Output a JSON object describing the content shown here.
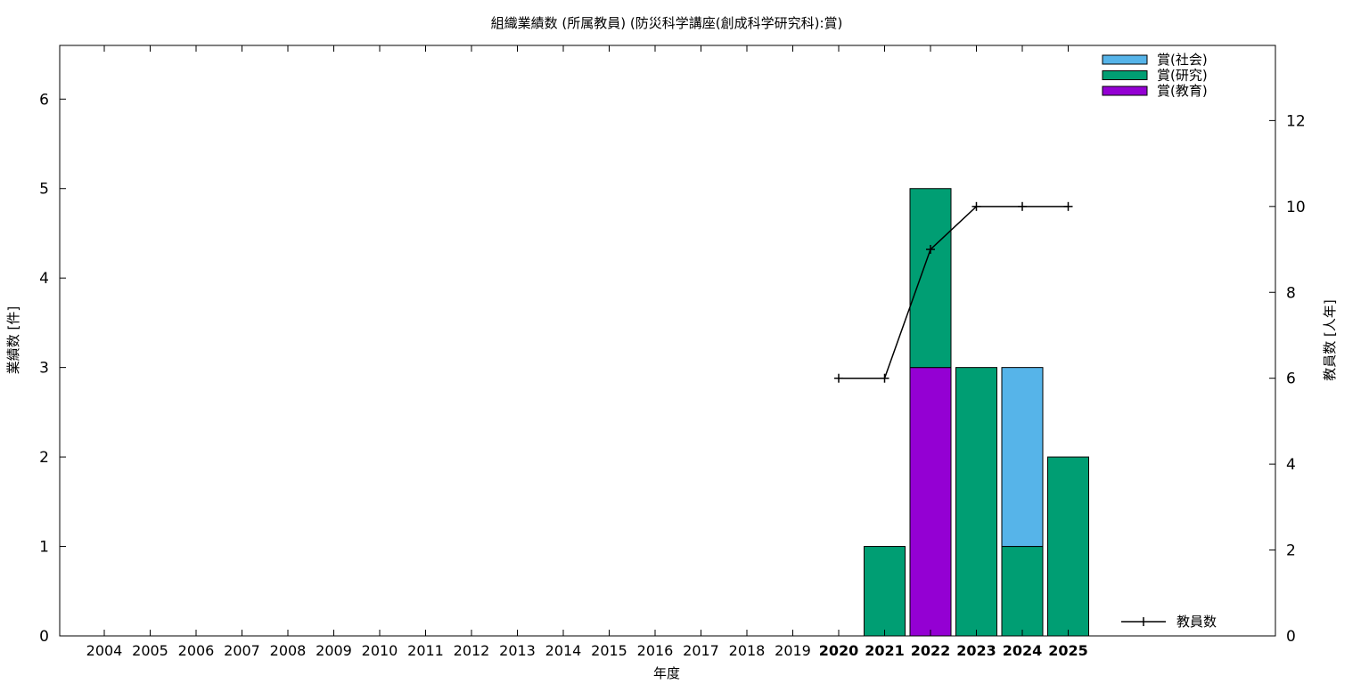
{
  "chart_data": {
    "type": "bar",
    "title": "組織業績数 (所属教員) (防災科学講座(創成科学研究科):賞)",
    "xlabel": "年度",
    "ylabel": "業績数 [件]",
    "y2label": "教員数 [人年]",
    "categories": [
      "2004",
      "2005",
      "2006",
      "2007",
      "2008",
      "2009",
      "2010",
      "2011",
      "2012",
      "2013",
      "2014",
      "2015",
      "2016",
      "2017",
      "2018",
      "2019",
      "2020",
      "2021",
      "2022",
      "2023",
      "2024",
      "2025"
    ],
    "bold_categories": [
      "2020",
      "2021",
      "2022",
      "2023",
      "2024",
      "2025"
    ],
    "ylim": [
      0,
      6.6
    ],
    "y2lim": [
      0,
      13.75
    ],
    "yticks": [
      0,
      1,
      2,
      3,
      4,
      5,
      6
    ],
    "y2ticks": [
      0,
      2,
      4,
      6,
      8,
      10,
      12
    ],
    "stacked": true,
    "series": [
      {
        "name": "賞(教育)",
        "color": "#9400d3",
        "values": [
          0,
          0,
          0,
          0,
          0,
          0,
          0,
          0,
          0,
          0,
          0,
          0,
          0,
          0,
          0,
          0,
          0,
          0,
          3,
          0,
          0,
          0
        ]
      },
      {
        "name": "賞(研究)",
        "color": "#009e73",
        "values": [
          0,
          0,
          0,
          0,
          0,
          0,
          0,
          0,
          0,
          0,
          0,
          0,
          0,
          0,
          0,
          0,
          0,
          1,
          2,
          3,
          1,
          2
        ]
      },
      {
        "name": "賞(社会)",
        "color": "#56b4e9",
        "values": [
          0,
          0,
          0,
          0,
          0,
          0,
          0,
          0,
          0,
          0,
          0,
          0,
          0,
          0,
          0,
          0,
          0,
          0,
          0,
          0,
          2,
          0
        ]
      }
    ],
    "legend_order": [
      "賞(社会)",
      "賞(研究)",
      "賞(教育)"
    ],
    "legend_position": "top-right",
    "line_series": {
      "name": "教員数",
      "color": "#000000",
      "axis": "y2",
      "x": [
        "2020",
        "2021",
        "2022",
        "2023",
        "2024",
        "2025"
      ],
      "values": [
        6,
        6,
        9,
        10,
        10,
        10
      ]
    },
    "line_legend_position": "bottom-right",
    "grid": false
  }
}
